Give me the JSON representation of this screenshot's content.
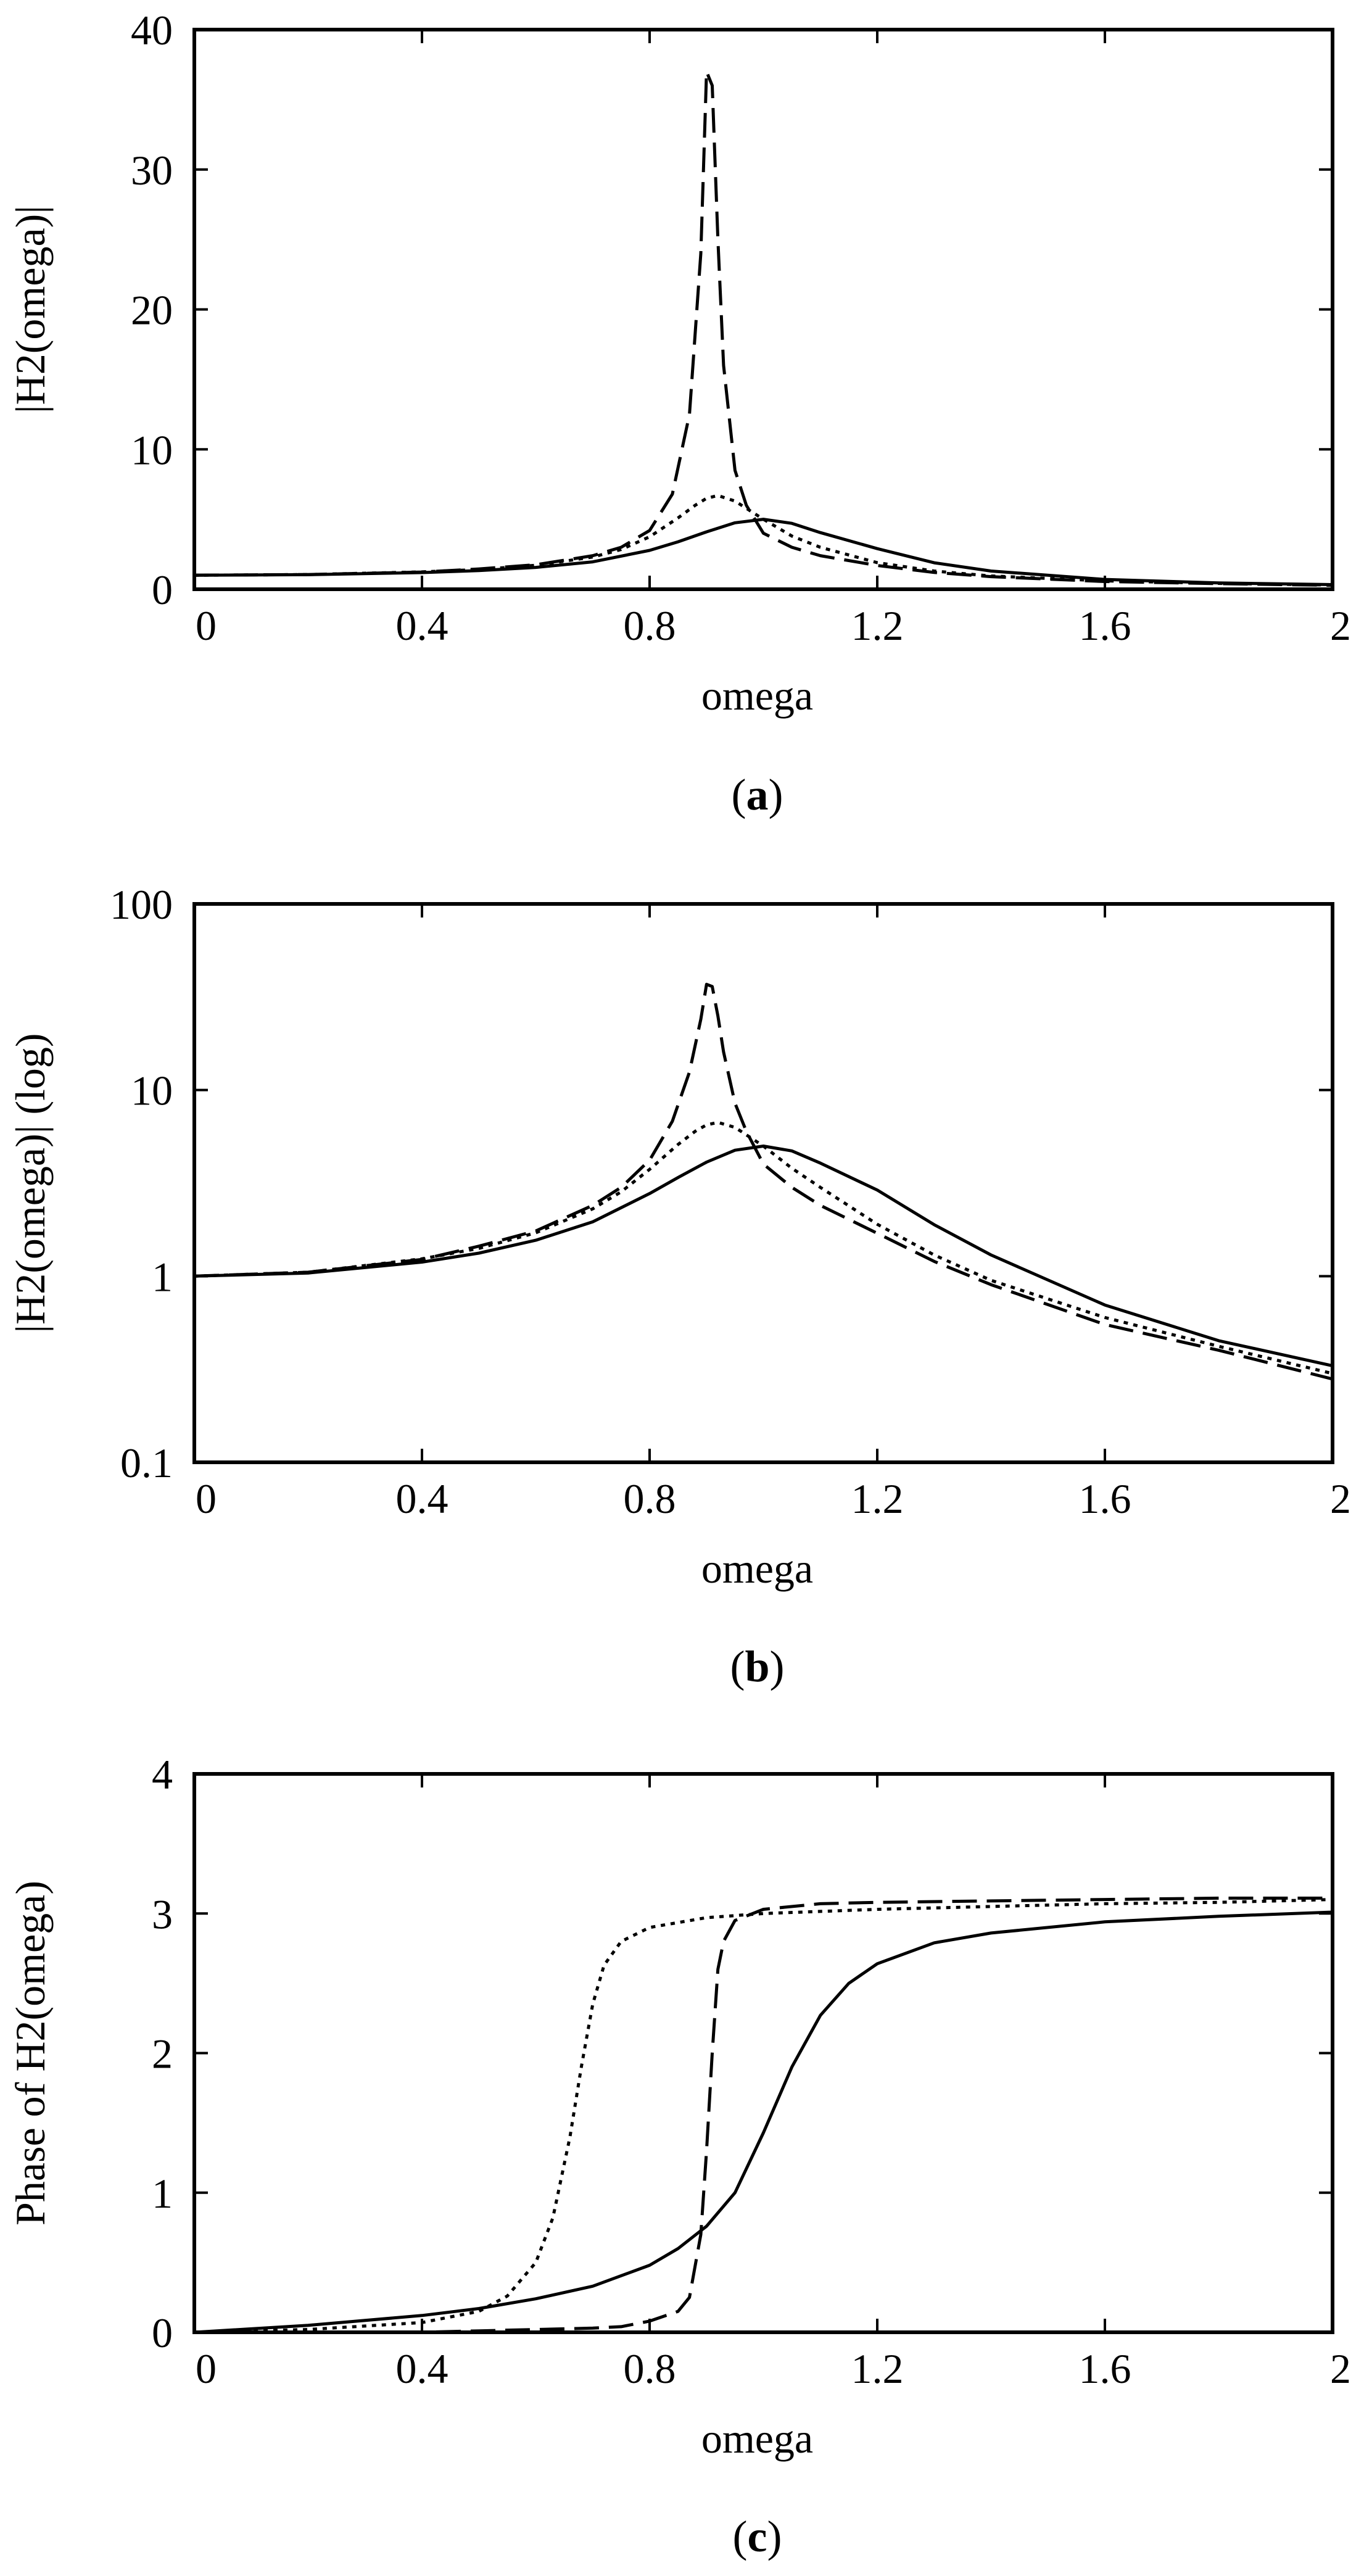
{
  "colors": {
    "ink": "#000000",
    "background": "#ffffff"
  },
  "chart_data": [
    {
      "type": "line",
      "panel": "a",
      "caption": {
        "open": "(",
        "letter": "a",
        "close": ")"
      },
      "xlabel": "omega",
      "ylabel": "|H2(omega)|",
      "xlim": [
        0,
        2
      ],
      "ylim": [
        0,
        40
      ],
      "yscale": "linear",
      "grid": false,
      "xticks": [
        0,
        0.4,
        0.8,
        1.2,
        1.6,
        2
      ],
      "xtick_labels": [
        "0",
        "0.4",
        "0.8",
        "1.2",
        "1.6",
        "2"
      ],
      "yticks": [
        0,
        10,
        20,
        30,
        40
      ],
      "ytick_labels": [
        "0",
        "10",
        "20",
        "30",
        "40"
      ],
      "series": [
        {
          "name": "solid",
          "style": "solid",
          "x": [
            0,
            0.2,
            0.4,
            0.5,
            0.6,
            0.7,
            0.8,
            0.85,
            0.9,
            0.95,
            1.0,
            1.05,
            1.1,
            1.2,
            1.3,
            1.4,
            1.6,
            1.8,
            2.0
          ],
          "y": [
            1.0,
            1.04,
            1.19,
            1.33,
            1.56,
            1.96,
            2.78,
            3.39,
            4.1,
            4.75,
            5.0,
            4.71,
            4.05,
            2.9,
            1.89,
            1.3,
            0.7,
            0.45,
            0.33
          ]
        },
        {
          "name": "dotted",
          "style": "dotted",
          "x": [
            0,
            0.2,
            0.4,
            0.5,
            0.6,
            0.7,
            0.75,
            0.8,
            0.85,
            0.88,
            0.9,
            0.92,
            0.95,
            1.0,
            1.05,
            1.1,
            1.2,
            1.3,
            1.4,
            1.6,
            1.8,
            2.0
          ],
          "y": [
            1.0,
            1.05,
            1.24,
            1.41,
            1.71,
            2.3,
            2.84,
            3.75,
            5.1,
            6.0,
            6.5,
            6.7,
            6.3,
            5.0,
            3.8,
            3.0,
            1.9,
            1.3,
            0.95,
            0.6,
            0.42,
            0.3
          ]
        },
        {
          "name": "dashed",
          "style": "dashed",
          "x": [
            0,
            0.2,
            0.4,
            0.5,
            0.6,
            0.7,
            0.75,
            0.8,
            0.84,
            0.87,
            0.89,
            0.9,
            0.91,
            0.92,
            0.93,
            0.95,
            0.97,
            1.0,
            1.05,
            1.1,
            1.2,
            1.3,
            1.4,
            1.6,
            1.8,
            2.0
          ],
          "y": [
            1.0,
            1.05,
            1.23,
            1.45,
            1.75,
            2.4,
            3.0,
            4.2,
            6.8,
            12.5,
            24.0,
            37.0,
            36.0,
            25.0,
            16.0,
            8.5,
            6.0,
            4.0,
            3.0,
            2.4,
            1.7,
            1.2,
            0.9,
            0.55,
            0.4,
            0.28
          ]
        }
      ]
    },
    {
      "type": "line",
      "panel": "b",
      "caption": {
        "open": "(",
        "letter": "b",
        "close": ")"
      },
      "xlabel": "omega",
      "ylabel": "|H2(omega)| (log)",
      "xlim": [
        0,
        2
      ],
      "ylim": [
        0.1,
        100
      ],
      "yscale": "log",
      "grid": false,
      "xticks": [
        0,
        0.4,
        0.8,
        1.2,
        1.6,
        2
      ],
      "xtick_labels": [
        "0",
        "0.4",
        "0.8",
        "1.2",
        "1.6",
        "2"
      ],
      "yticks": [
        0.1,
        1,
        10,
        100
      ],
      "ytick_labels": [
        "0.1",
        "1",
        "10",
        "100"
      ],
      "series": [
        {
          "name": "solid",
          "style": "solid",
          "x": [
            0,
            0.2,
            0.4,
            0.5,
            0.6,
            0.7,
            0.8,
            0.85,
            0.9,
            0.95,
            1.0,
            1.05,
            1.1,
            1.2,
            1.3,
            1.4,
            1.6,
            1.8,
            2.0
          ],
          "y": [
            1.0,
            1.04,
            1.19,
            1.33,
            1.56,
            1.96,
            2.78,
            3.39,
            4.1,
            4.75,
            5.0,
            4.71,
            4.05,
            2.9,
            1.89,
            1.3,
            0.7,
            0.45,
            0.33
          ]
        },
        {
          "name": "dotted",
          "style": "dotted",
          "x": [
            0,
            0.2,
            0.4,
            0.5,
            0.6,
            0.7,
            0.75,
            0.8,
            0.85,
            0.88,
            0.9,
            0.92,
            0.95,
            1.0,
            1.05,
            1.1,
            1.2,
            1.3,
            1.4,
            1.6,
            1.8,
            2.0
          ],
          "y": [
            1.0,
            1.05,
            1.24,
            1.41,
            1.71,
            2.3,
            2.84,
            3.75,
            5.1,
            6.0,
            6.5,
            6.7,
            6.3,
            5.0,
            3.8,
            3.0,
            1.9,
            1.3,
            0.95,
            0.6,
            0.42,
            0.3
          ]
        },
        {
          "name": "dashed",
          "style": "dashed",
          "x": [
            0,
            0.2,
            0.4,
            0.5,
            0.6,
            0.7,
            0.75,
            0.8,
            0.84,
            0.87,
            0.89,
            0.9,
            0.91,
            0.92,
            0.93,
            0.95,
            0.97,
            1.0,
            1.05,
            1.1,
            1.2,
            1.3,
            1.4,
            1.6,
            1.8,
            2.0
          ],
          "y": [
            1.0,
            1.05,
            1.23,
            1.45,
            1.75,
            2.4,
            3.0,
            4.2,
            6.8,
            12.5,
            24.0,
            37.0,
            36.0,
            25.0,
            16.0,
            8.5,
            6.0,
            4.0,
            3.0,
            2.4,
            1.7,
            1.2,
            0.9,
            0.55,
            0.4,
            0.28
          ]
        }
      ]
    },
    {
      "type": "line",
      "panel": "c",
      "caption": {
        "open": "(",
        "letter": "c",
        "close": ")"
      },
      "xlabel": "omega",
      "ylabel": "Phase of H2(omega)",
      "xlim": [
        0,
        2
      ],
      "ylim": [
        0,
        4
      ],
      "yscale": "linear",
      "grid": false,
      "xticks": [
        0,
        0.4,
        0.8,
        1.2,
        1.6,
        2
      ],
      "xtick_labels": [
        "0",
        "0.4",
        "0.8",
        "1.2",
        "1.6",
        "2"
      ],
      "yticks": [
        0,
        1,
        2,
        3,
        4
      ],
      "ytick_labels": [
        "0",
        "1",
        "2",
        "3",
        "4"
      ],
      "series": [
        {
          "name": "solid",
          "style": "solid",
          "x": [
            0,
            0.2,
            0.4,
            0.5,
            0.6,
            0.7,
            0.8,
            0.85,
            0.9,
            0.95,
            1.0,
            1.05,
            1.1,
            1.15,
            1.2,
            1.3,
            1.4,
            1.6,
            1.8,
            2.0
          ],
          "y": [
            0.0,
            0.05,
            0.12,
            0.17,
            0.24,
            0.33,
            0.48,
            0.6,
            0.76,
            1.0,
            1.43,
            1.9,
            2.27,
            2.5,
            2.64,
            2.79,
            2.86,
            2.94,
            2.98,
            3.01
          ]
        },
        {
          "name": "dotted",
          "style": "dotted",
          "x": [
            0,
            0.2,
            0.4,
            0.5,
            0.55,
            0.6,
            0.63,
            0.66,
            0.68,
            0.7,
            0.72,
            0.75,
            0.8,
            0.9,
            1.0,
            1.2,
            1.4,
            1.6,
            1.8,
            2.0
          ],
          "y": [
            0.0,
            0.02,
            0.07,
            0.15,
            0.26,
            0.5,
            0.82,
            1.4,
            1.9,
            2.35,
            2.63,
            2.8,
            2.9,
            2.97,
            3.0,
            3.03,
            3.05,
            3.07,
            3.08,
            3.1
          ]
        },
        {
          "name": "dashed",
          "style": "dashed",
          "x": [
            0,
            0.2,
            0.4,
            0.5,
            0.6,
            0.7,
            0.75,
            0.8,
            0.85,
            0.87,
            0.89,
            0.9,
            0.91,
            0.92,
            0.93,
            0.95,
            1.0,
            1.1,
            1.2,
            1.4,
            1.6,
            1.8,
            2.0
          ],
          "y": [
            0.0,
            0.0,
            0.0,
            0.01,
            0.02,
            0.03,
            0.04,
            0.08,
            0.15,
            0.25,
            0.7,
            1.3,
            2.0,
            2.6,
            2.8,
            2.95,
            3.03,
            3.07,
            3.08,
            3.09,
            3.1,
            3.11,
            3.11
          ]
        }
      ]
    }
  ]
}
